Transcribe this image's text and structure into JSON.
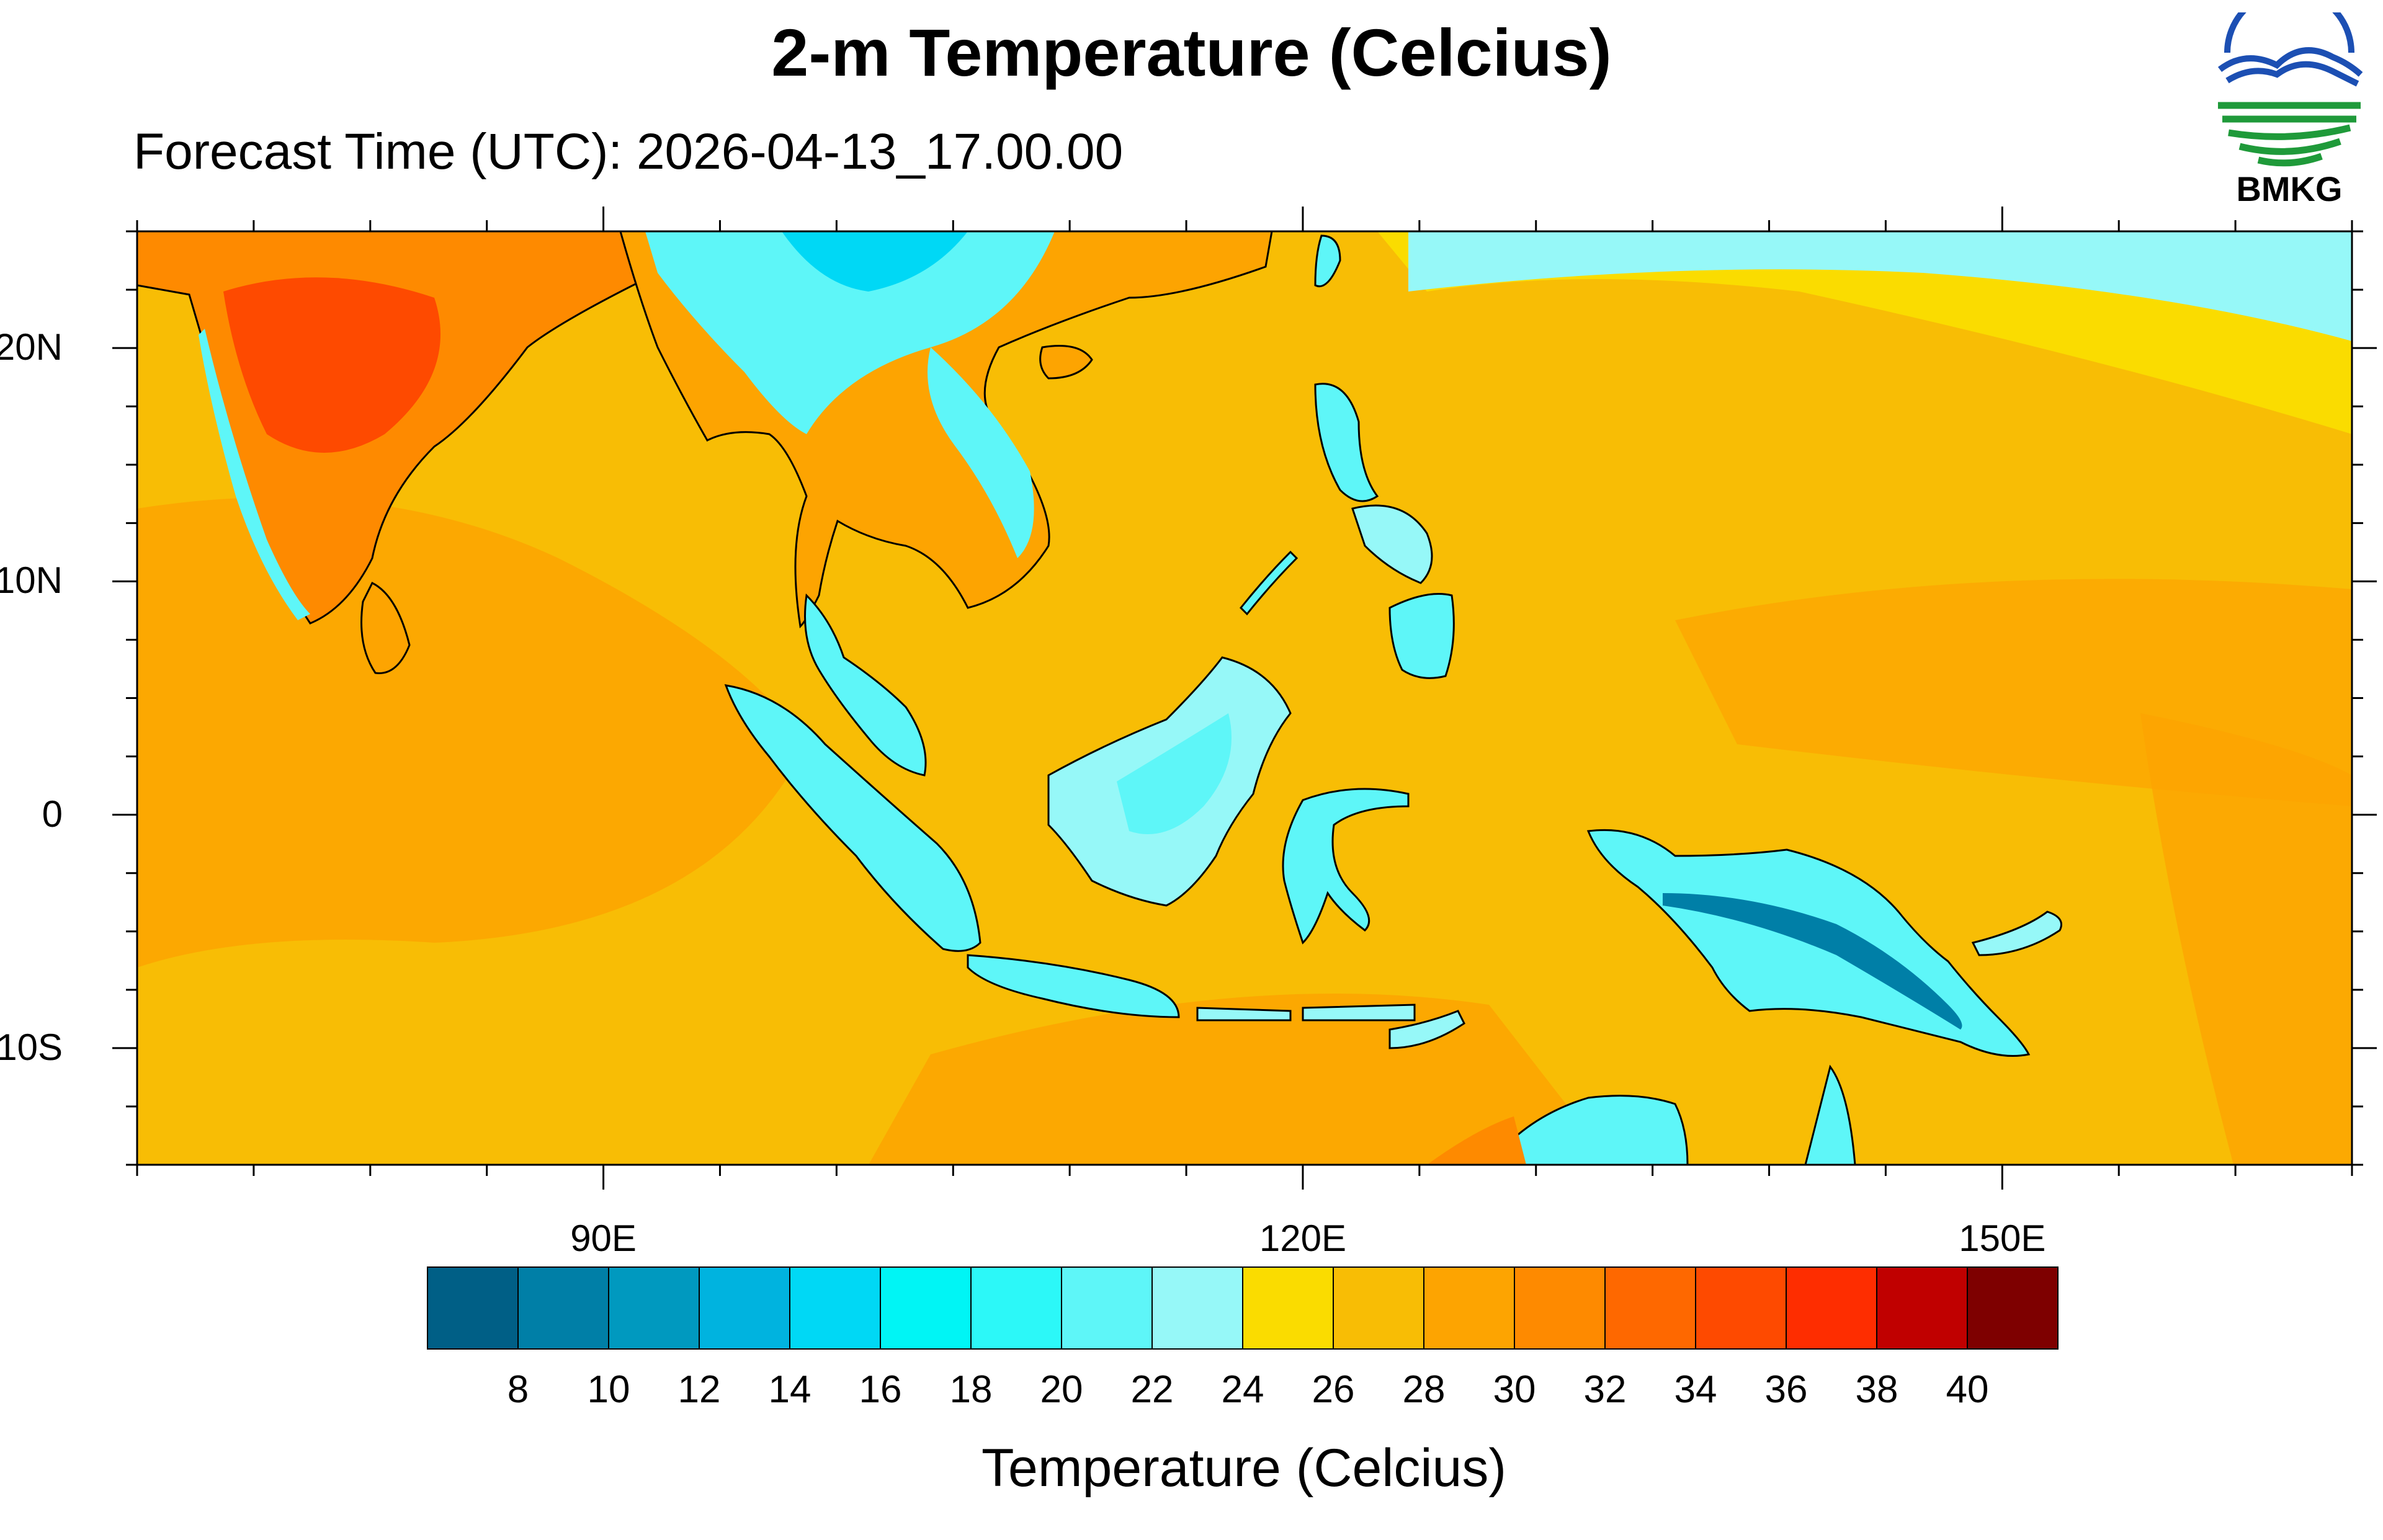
{
  "title": "2-m Temperature (Celcius)",
  "subtitle": "Forecast Time (UTC): 2026-04-13_17.00.00",
  "logo": {
    "name": "bmkg-logo",
    "text": "BMKG",
    "colors": [
      "#1c4fb3",
      "#1f9a3a"
    ]
  },
  "map": {
    "lon_range": [
      70,
      165
    ],
    "lat_range": [
      -15,
      25
    ],
    "lat_ticks": [
      {
        "value": 20,
        "label": "20N"
      },
      {
        "value": 10,
        "label": "10N"
      },
      {
        "value": 0,
        "label": "0"
      },
      {
        "value": -10,
        "label": "10S"
      }
    ],
    "lon_ticks": [
      {
        "value": 90,
        "label": "90E"
      },
      {
        "value": 120,
        "label": "120E"
      },
      {
        "value": 150,
        "label": "150E"
      }
    ],
    "ocean_color": "#f8bd05",
    "land_warm_color": "#ff9a00",
    "land_hot_color": "#ff4a00",
    "highland_color": "#5ff5fa",
    "coast_color": "#000000"
  },
  "colorbar": {
    "title": "Temperature (Celcius)",
    "labels": [
      "8",
      "10",
      "12",
      "14",
      "16",
      "18",
      "20",
      "22",
      "24",
      "26",
      "28",
      "30",
      "32",
      "34",
      "36",
      "38",
      "40"
    ],
    "colors": [
      "#005f86",
      "#007fa7",
      "#0099bf",
      "#00b3df",
      "#00d8f5",
      "#00f5f5",
      "#2cf8f8",
      "#5ef6f8",
      "#96f8f8",
      "#fadc00",
      "#f8bd05",
      "#fda401",
      "#fe8a00",
      "#fe6800",
      "#fe4a00",
      "#fe2d00",
      "#c00000",
      "#7e0000"
    ]
  }
}
